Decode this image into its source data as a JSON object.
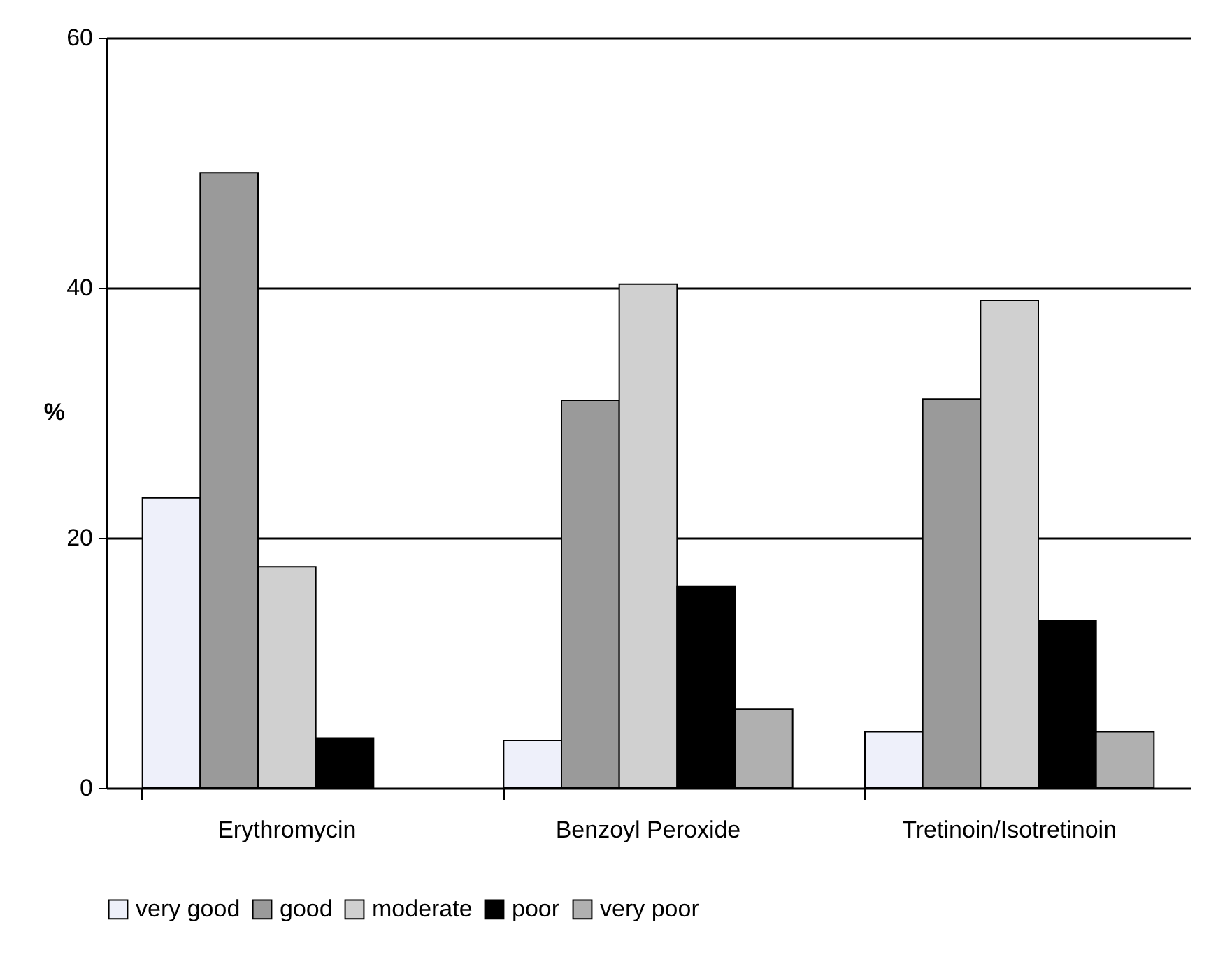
{
  "chart_data": {
    "type": "bar",
    "ylabel": "%",
    "categories": [
      "Erythromycin",
      "Benzoyl Peroxide",
      "Tretinoin/Isotretinoin"
    ],
    "series": [
      {
        "name": "very good",
        "color": "#eef0fa",
        "values": [
          23.2,
          3.8,
          4.5
        ]
      },
      {
        "name": "good",
        "color": "#9a9a9a",
        "values": [
          49.2,
          31,
          31.1
        ]
      },
      {
        "name": "moderate",
        "color": "#d0d0d0",
        "values": [
          17.7,
          40.3,
          39
        ]
      },
      {
        "name": "poor",
        "color": "#000000",
        "values": [
          4,
          16.1,
          13.4
        ]
      },
      {
        "name": "very poor",
        "color": "#b0b0b0",
        "values": [
          null,
          6.3,
          4.5
        ]
      }
    ],
    "ylim": [
      0,
      60
    ],
    "yticks": [
      0,
      20,
      40,
      60
    ],
    "grid": "y",
    "legend": "bottom"
  }
}
